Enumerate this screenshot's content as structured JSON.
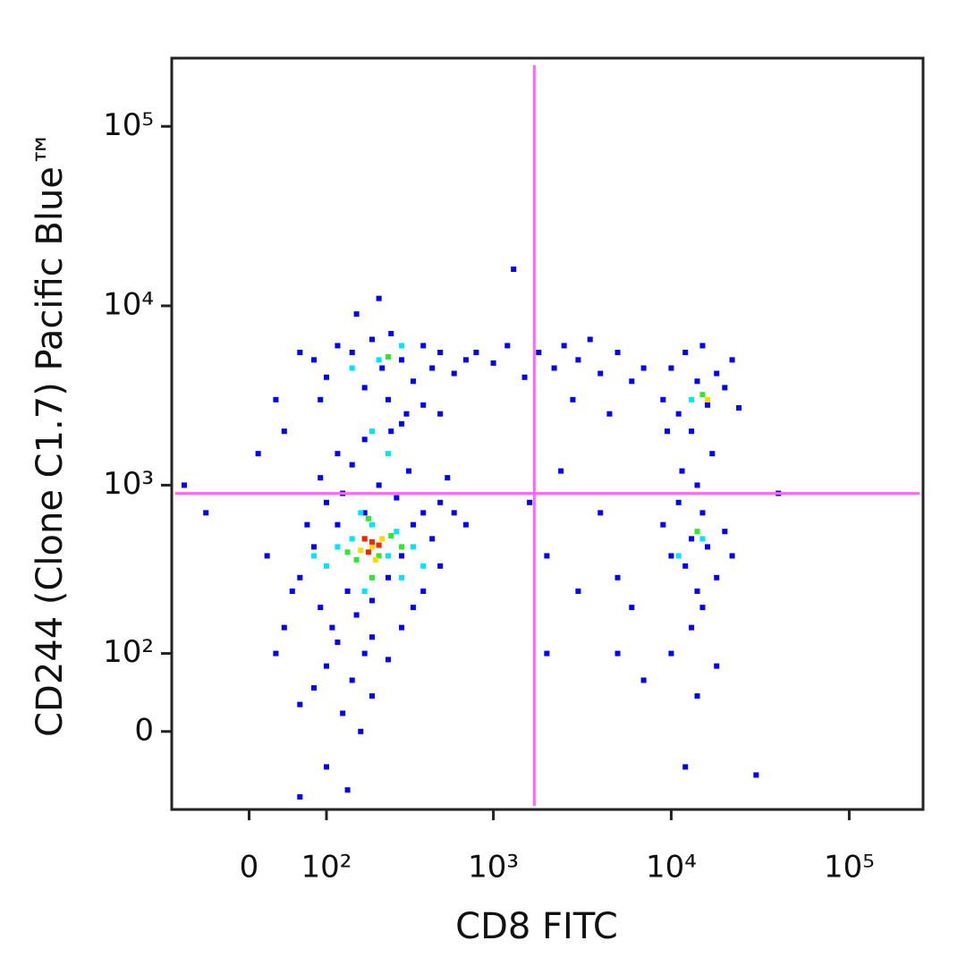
{
  "chart_data": {
    "type": "scatter",
    "xlabel": "CD8 FITC",
    "ylabel": "CD244 (Clone C1.7) Pacific Blue™",
    "xscale": "biexponential",
    "yscale": "biexponential",
    "xlim": [
      -100,
      260000
    ],
    "ylim": [
      -100,
      240000
    ],
    "xticks": [
      0,
      {
        "value": 100,
        "label": "10²"
      },
      {
        "value": 1000,
        "label": "10³"
      },
      {
        "value": 10000,
        "label": "10⁴"
      },
      {
        "value": 100000,
        "label": "10⁵"
      }
    ],
    "yticks": [
      0,
      {
        "value": 100,
        "label": "10²"
      },
      {
        "value": 1000,
        "label": "10³"
      },
      {
        "value": 10000,
        "label": "10⁴"
      },
      {
        "value": 100000,
        "label": "10⁵"
      }
    ],
    "gates": {
      "x": 1700,
      "y": 900,
      "color": "#ff66ff"
    },
    "series": [
      {
        "color": "#0000ff",
        "x": [
          60,
          80,
          90,
          110,
          120,
          140,
          160,
          180,
          200,
          250,
          300,
          350,
          400,
          450,
          500,
          70,
          50,
          40,
          100,
          130,
          220,
          280,
          330,
          150,
          90,
          500,
          600,
          120,
          180,
          100,
          150,
          200,
          80,
          60,
          130,
          170,
          100,
          140,
          60,
          30,
          20,
          -50,
          -80,
          10,
          40,
          200,
          300,
          250,
          350,
          400,
          550,
          700,
          260,
          320,
          180,
          120,
          80,
          100,
          120,
          150,
          180,
          200,
          230,
          260,
          300,
          350,
          400,
          450,
          500,
          600,
          700,
          160,
          220,
          90,
          60,
          30,
          250,
          400,
          300,
          500,
          800,
          1000,
          1200,
          1500,
          1800,
          2200,
          2500,
          3000,
          3500,
          4000,
          5000,
          6000,
          7000,
          2800,
          4500,
          1300,
          2000,
          3000,
          5000,
          1600,
          2400,
          4000,
          6000,
          2000,
          5000,
          7000,
          9000,
          10000,
          11000,
          12000,
          13000,
          14000,
          15000,
          16000,
          18000,
          20000,
          22000,
          24000,
          9500,
          17000,
          9000,
          10000,
          11000,
          12000,
          13000,
          14000,
          15000,
          16000,
          18000,
          20000,
          22000,
          11500,
          14000,
          13000,
          15000,
          10000,
          14000,
          12000,
          30000,
          40000,
          18000
        ],
        "values": [
          300,
          450,
          200,
          150,
          600,
          250,
          180,
          700,
          220,
          300,
          400,
          600,
          250,
          500,
          350,
          600,
          250,
          150,
          800,
          900,
          1000,
          850,
          1200,
          1300,
          1100,
          800,
          700,
          120,
          100,
          80,
          60,
          40,
          50,
          30,
          20,
          0,
          -40,
          -70,
          -80,
          100,
          400,
          700,
          1000,
          1500,
          2000,
          130,
          150,
          90,
          200,
          700,
          1100,
          600,
          2000,
          2500,
          1800,
          1500,
          5000,
          4000,
          6000,
          5500,
          3500,
          6500,
          4500,
          7000,
          5000,
          3800,
          6000,
          4500,
          5500,
          4200,
          5000,
          9000,
          11000,
          3000,
          5500,
          3000,
          3000,
          2800,
          2200,
          2500,
          5500,
          4800,
          6000,
          4000,
          5500,
          4500,
          6000,
          5000,
          6500,
          4200,
          5500,
          3800,
          4500,
          3000,
          2500,
          16000,
          400,
          250,
          300,
          800,
          1200,
          700,
          200,
          100,
          100,
          60,
          3000,
          4500,
          2500,
          5500,
          2000,
          3800,
          6000,
          2800,
          4200,
          3500,
          5000,
          2700,
          2000,
          1500,
          600,
          400,
          800,
          350,
          500,
          250,
          700,
          450,
          300,
          550,
          400,
          1200,
          1000,
          150,
          200,
          100,
          40,
          -40,
          -50,
          900,
          80
        ]
      },
      {
        "color": "#00e5ff",
        "x": [
          150,
          250,
          100,
          200,
          300,
          180,
          120,
          350,
          220,
          300,
          150,
          13000,
          15000,
          11000,
          170,
          280,
          80,
          400,
          200,
          250
        ],
        "values": [
          500,
          400,
          350,
          600,
          300,
          250,
          450,
          450,
          5000,
          6000,
          4500,
          3000,
          500,
          400,
          700,
          550,
          400,
          350,
          2000,
          1500
        ]
      },
      {
        "color": "#2ee82e",
        "x": [
          180,
          220,
          160,
          260,
          140,
          300,
          200,
          15000,
          14000,
          250,
          190
        ],
        "values": [
          500,
          400,
          380,
          520,
          420,
          450,
          300,
          3200,
          550,
          5200,
          650
        ]
      },
      {
        "color": "#ffd800",
        "x": [
          200,
          170,
          230,
          210,
          16000
        ],
        "values": [
          450,
          430,
          500,
          380,
          3000
        ]
      },
      {
        "color": "#ff2000",
        "x": [
          200,
          190,
          220,
          180
        ],
        "values": [
          480,
          420,
          460,
          500
        ]
      }
    ]
  }
}
